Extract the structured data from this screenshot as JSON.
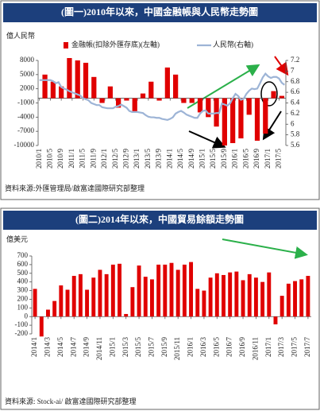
{
  "chart_data": [
    {
      "type": "bar",
      "title": "(圖一)2010年以來，中國金融帳與人民幣走勢圖",
      "y_label": "億人民幣",
      "source": "資料來源:外匯管理局/啟富達國際研究部整理",
      "categories": [
        "2010/1",
        null,
        null,
        null,
        "2010/5",
        null,
        null,
        null,
        "2010/9",
        null,
        null,
        null,
        "2011/1",
        null,
        null,
        null,
        "2011/5",
        null,
        null,
        null,
        "2011/9",
        null,
        null,
        null,
        "2012/1",
        null,
        null,
        null,
        "2012/5",
        null,
        null,
        null,
        "2012/9",
        null,
        null,
        null,
        "2013/1",
        null,
        null,
        null,
        "2013/5",
        null,
        null,
        null,
        "2013/9",
        null,
        null,
        null,
        "2014/1",
        null,
        null,
        null,
        "2014/5",
        null,
        null,
        null,
        "2014/9",
        null,
        null,
        null,
        "2015/1",
        null,
        null,
        null,
        "2015/5",
        null,
        null,
        null,
        "2015/9",
        null,
        null,
        null,
        "2016/1",
        null,
        null,
        null,
        "2016/5",
        null,
        null,
        null,
        "2016/9",
        null,
        null,
        null,
        "2017/1",
        null,
        null,
        null,
        "2017/5",
        null,
        null
      ],
      "series": [
        {
          "name": "金融帳(扣除外匯存底)(左軸)",
          "type": "bar",
          "color": "#e00000",
          "values": [
            null,
            null,
            5000,
            null,
            null,
            3500,
            null,
            null,
            2500,
            null,
            null,
            8500,
            null,
            null,
            8000,
            null,
            null,
            7500,
            null,
            null,
            4500,
            null,
            null,
            -1000,
            null,
            null,
            2500,
            null,
            null,
            -2000,
            null,
            null,
            -500,
            null,
            null,
            -3000,
            null,
            null,
            1000,
            null,
            null,
            3500,
            null,
            null,
            -500,
            null,
            null,
            6500,
            null,
            null,
            5000,
            null,
            null,
            -1000,
            null,
            null,
            -1000,
            null,
            null,
            -3000,
            null,
            null,
            -4000,
            null,
            null,
            -6000,
            null,
            null,
            -10000,
            null,
            null,
            -9500,
            null,
            null,
            -8500,
            null,
            null,
            -3500,
            null,
            null,
            -9000,
            null,
            null,
            -7500,
            null,
            null,
            1500,
            null,
            null,
            500,
            null
          ]
        },
        {
          "name": "人民幣(右軸)",
          "type": "line",
          "axis": "y2",
          "color": "#9db4d6",
          "values": [
            6.83,
            6.83,
            6.83,
            6.83,
            6.83,
            6.81,
            6.77,
            6.79,
            6.7,
            6.67,
            6.65,
            6.62,
            6.6,
            6.58,
            6.56,
            6.54,
            6.49,
            6.47,
            6.45,
            6.4,
            6.38,
            6.36,
            6.36,
            6.32,
            6.31,
            6.3,
            6.3,
            6.3,
            6.33,
            6.34,
            6.37,
            6.34,
            6.31,
            6.25,
            6.23,
            6.23,
            6.23,
            6.22,
            6.21,
            6.17,
            6.14,
            6.13,
            6.13,
            6.12,
            6.12,
            6.1,
            6.09,
            6.08,
            6.1,
            6.13,
            6.2,
            6.23,
            6.25,
            6.22,
            6.18,
            6.16,
            6.14,
            6.12,
            6.12,
            6.2,
            6.25,
            6.26,
            6.2,
            6.2,
            6.2,
            6.21,
            6.21,
            6.39,
            6.37,
            6.35,
            6.39,
            6.49,
            6.57,
            6.53,
            6.46,
            6.48,
            6.57,
            6.63,
            6.67,
            6.66,
            6.67,
            6.77,
            6.88,
            6.95,
            6.9,
            6.87,
            6.89,
            6.89,
            6.86,
            6.78,
            6.74
          ]
        }
      ],
      "ylim": [
        -10000,
        8000
      ],
      "yticks": [
        -10000,
        -7000,
        -4000,
        -1000,
        2000,
        5000,
        8000
      ],
      "y2lim": [
        5.6,
        7.2
      ],
      "y2ticks": [
        5.6,
        5.8,
        6,
        6.2,
        6.4,
        6.6,
        6.8,
        7,
        7.2
      ]
    },
    {
      "type": "bar",
      "title": "(圖二)2014年以來，中國貿易餘額走勢圖",
      "y_label": "億美元",
      "source": "資料來源: Stock-ai/ 啟富達國際研究部整理",
      "categories": [
        "2014/1",
        null,
        "2014/3",
        null,
        "2014/5",
        null,
        "2014/7",
        null,
        "2014/9",
        null,
        "2014/11",
        null,
        "2015/1",
        null,
        "2015/3",
        null,
        "2015/5",
        null,
        "2015/7",
        null,
        "2015/9",
        null,
        "2015/11",
        null,
        "2016/1",
        null,
        "2016/3",
        null,
        "2016/5",
        null,
        "2016/7",
        null,
        "2016/9",
        null,
        "2016/11",
        null,
        "2017/1",
        null,
        "2017/3",
        null,
        "2017/5",
        null,
        "2017/7"
      ],
      "series": [
        {
          "type": "bar",
          "color": "#e00000",
          "values": [
            320,
            -230,
            80,
            180,
            360,
            310,
            470,
            490,
            310,
            450,
            540,
            490,
            600,
            610,
            30,
            340,
            590,
            460,
            430,
            600,
            600,
            620,
            540,
            600,
            630,
            320,
            300,
            450,
            500,
            480,
            510,
            520,
            420,
            490,
            450,
            400,
            510,
            -90,
            240,
            380,
            410,
            430,
            470
          ]
        }
      ],
      "ylim": [
        -200,
        700
      ],
      "yticks": [
        -200,
        -100,
        0,
        100,
        200,
        300,
        400,
        500,
        600,
        700
      ]
    }
  ]
}
